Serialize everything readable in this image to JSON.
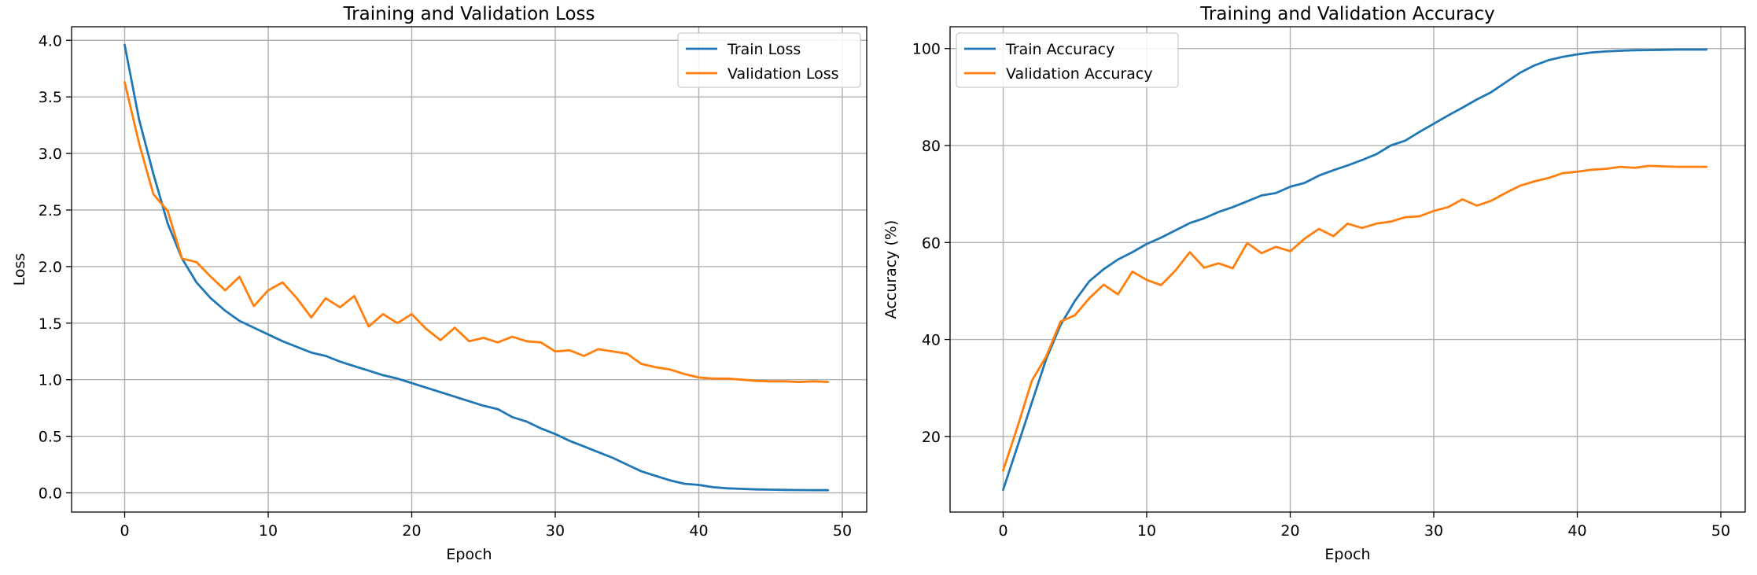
{
  "chart_data": [
    {
      "type": "line",
      "title": "Training and Validation Loss",
      "xlabel": "Epoch",
      "ylabel": "Loss",
      "xlim": [
        -3.7,
        51.7
      ],
      "ylim": [
        -0.17,
        4.12
      ],
      "xticks": [
        "0",
        "10",
        "20",
        "30",
        "40",
        "50"
      ],
      "yticks": [
        "0.0",
        "0.5",
        "1.0",
        "1.5",
        "2.0",
        "2.5",
        "3.0",
        "3.5",
        "4.0"
      ],
      "grid": true,
      "legend_position": "top-right",
      "series": [
        {
          "name": "Train Loss",
          "color": "#1f77b4",
          "x": [
            0,
            1,
            2,
            3,
            4,
            5,
            6,
            7,
            8,
            9,
            10,
            11,
            12,
            13,
            14,
            15,
            16,
            17,
            18,
            19,
            20,
            21,
            22,
            23,
            24,
            25,
            26,
            27,
            28,
            29,
            30,
            31,
            32,
            33,
            34,
            35,
            36,
            37,
            38,
            39,
            40,
            41,
            42,
            43,
            44,
            45,
            46,
            47,
            48,
            49
          ],
          "y": [
            3.96,
            3.3,
            2.82,
            2.38,
            2.07,
            1.86,
            1.72,
            1.61,
            1.52,
            1.46,
            1.4,
            1.34,
            1.29,
            1.24,
            1.21,
            1.16,
            1.12,
            1.08,
            1.04,
            1.01,
            0.97,
            0.93,
            0.89,
            0.85,
            0.81,
            0.77,
            0.74,
            0.67,
            0.63,
            0.57,
            0.52,
            0.46,
            0.41,
            0.36,
            0.31,
            0.25,
            0.19,
            0.15,
            0.11,
            0.08,
            0.07,
            0.05,
            0.04,
            0.035,
            0.03,
            0.028,
            0.026,
            0.025,
            0.024,
            0.023
          ]
        },
        {
          "name": "Validation Loss",
          "color": "#ff7f0e",
          "x": [
            0,
            1,
            2,
            3,
            4,
            5,
            6,
            7,
            8,
            9,
            10,
            11,
            12,
            13,
            14,
            15,
            16,
            17,
            18,
            19,
            20,
            21,
            22,
            23,
            24,
            25,
            26,
            27,
            28,
            29,
            30,
            31,
            32,
            33,
            34,
            35,
            36,
            37,
            38,
            39,
            40,
            41,
            42,
            43,
            44,
            45,
            46,
            47,
            48,
            49
          ],
          "y": [
            3.63,
            3.09,
            2.64,
            2.49,
            2.07,
            2.04,
            1.91,
            1.79,
            1.91,
            1.65,
            1.79,
            1.86,
            1.72,
            1.55,
            1.72,
            1.64,
            1.74,
            1.47,
            1.58,
            1.5,
            1.58,
            1.45,
            1.35,
            1.46,
            1.34,
            1.37,
            1.33,
            1.38,
            1.34,
            1.33,
            1.25,
            1.26,
            1.21,
            1.27,
            1.25,
            1.23,
            1.14,
            1.11,
            1.09,
            1.05,
            1.02,
            1.01,
            1.01,
            1.0,
            0.99,
            0.985,
            0.985,
            0.98,
            0.985,
            0.98
          ]
        }
      ]
    },
    {
      "type": "line",
      "title": "Training and Validation Accuracy",
      "xlabel": "Epoch",
      "ylabel": "Accuracy (%)",
      "xlim": [
        -3.7,
        51.7
      ],
      "ylim": [
        4.4,
        104.5
      ],
      "xticks": [
        "0",
        "10",
        "20",
        "30",
        "40",
        "50"
      ],
      "yticks": [
        "20",
        "40",
        "60",
        "80",
        "100"
      ],
      "grid": true,
      "legend_position": "top-left",
      "series": [
        {
          "name": "Train Accuracy",
          "color": "#1f77b4",
          "x": [
            0,
            1,
            2,
            3,
            4,
            5,
            6,
            7,
            8,
            9,
            10,
            11,
            12,
            13,
            14,
            15,
            16,
            17,
            18,
            19,
            20,
            21,
            22,
            23,
            24,
            25,
            26,
            27,
            28,
            29,
            30,
            31,
            32,
            33,
            34,
            35,
            36,
            37,
            38,
            39,
            40,
            41,
            42,
            43,
            44,
            45,
            46,
            47,
            48,
            49
          ],
          "y": [
            9.0,
            18.0,
            27.0,
            36.0,
            43.0,
            48.0,
            52.0,
            54.5,
            56.5,
            58.0,
            59.7,
            61.0,
            62.5,
            64.0,
            65.0,
            66.3,
            67.3,
            68.5,
            69.7,
            70.2,
            71.5,
            72.3,
            73.8,
            74.9,
            75.9,
            77.0,
            78.2,
            80.0,
            81.0,
            82.8,
            84.5,
            86.2,
            87.8,
            89.5,
            91.0,
            93.0,
            95.0,
            96.5,
            97.6,
            98.3,
            98.8,
            99.2,
            99.4,
            99.55,
            99.65,
            99.7,
            99.75,
            99.8,
            99.8,
            99.8
          ]
        },
        {
          "name": "Validation Accuracy",
          "color": "#ff7f0e",
          "x": [
            0,
            1,
            2,
            3,
            4,
            5,
            6,
            7,
            8,
            9,
            10,
            11,
            12,
            13,
            14,
            15,
            16,
            17,
            18,
            19,
            20,
            21,
            22,
            23,
            24,
            25,
            26,
            27,
            28,
            29,
            30,
            31,
            32,
            33,
            34,
            35,
            36,
            37,
            38,
            39,
            40,
            41,
            42,
            43,
            44,
            45,
            46,
            47,
            48,
            49
          ],
          "y": [
            13.0,
            22.0,
            31.5,
            36.5,
            43.7,
            45.0,
            48.5,
            51.3,
            49.3,
            54.0,
            52.3,
            51.2,
            54.2,
            58.0,
            54.8,
            55.7,
            54.7,
            59.9,
            57.8,
            59.1,
            58.2,
            60.8,
            62.8,
            61.3,
            63.9,
            63.0,
            63.9,
            64.3,
            65.2,
            65.4,
            66.5,
            67.3,
            68.9,
            67.6,
            68.6,
            70.2,
            71.7,
            72.6,
            73.3,
            74.3,
            74.6,
            75.0,
            75.2,
            75.6,
            75.4,
            75.8,
            75.7,
            75.6,
            75.6,
            75.6
          ]
        }
      ]
    }
  ]
}
